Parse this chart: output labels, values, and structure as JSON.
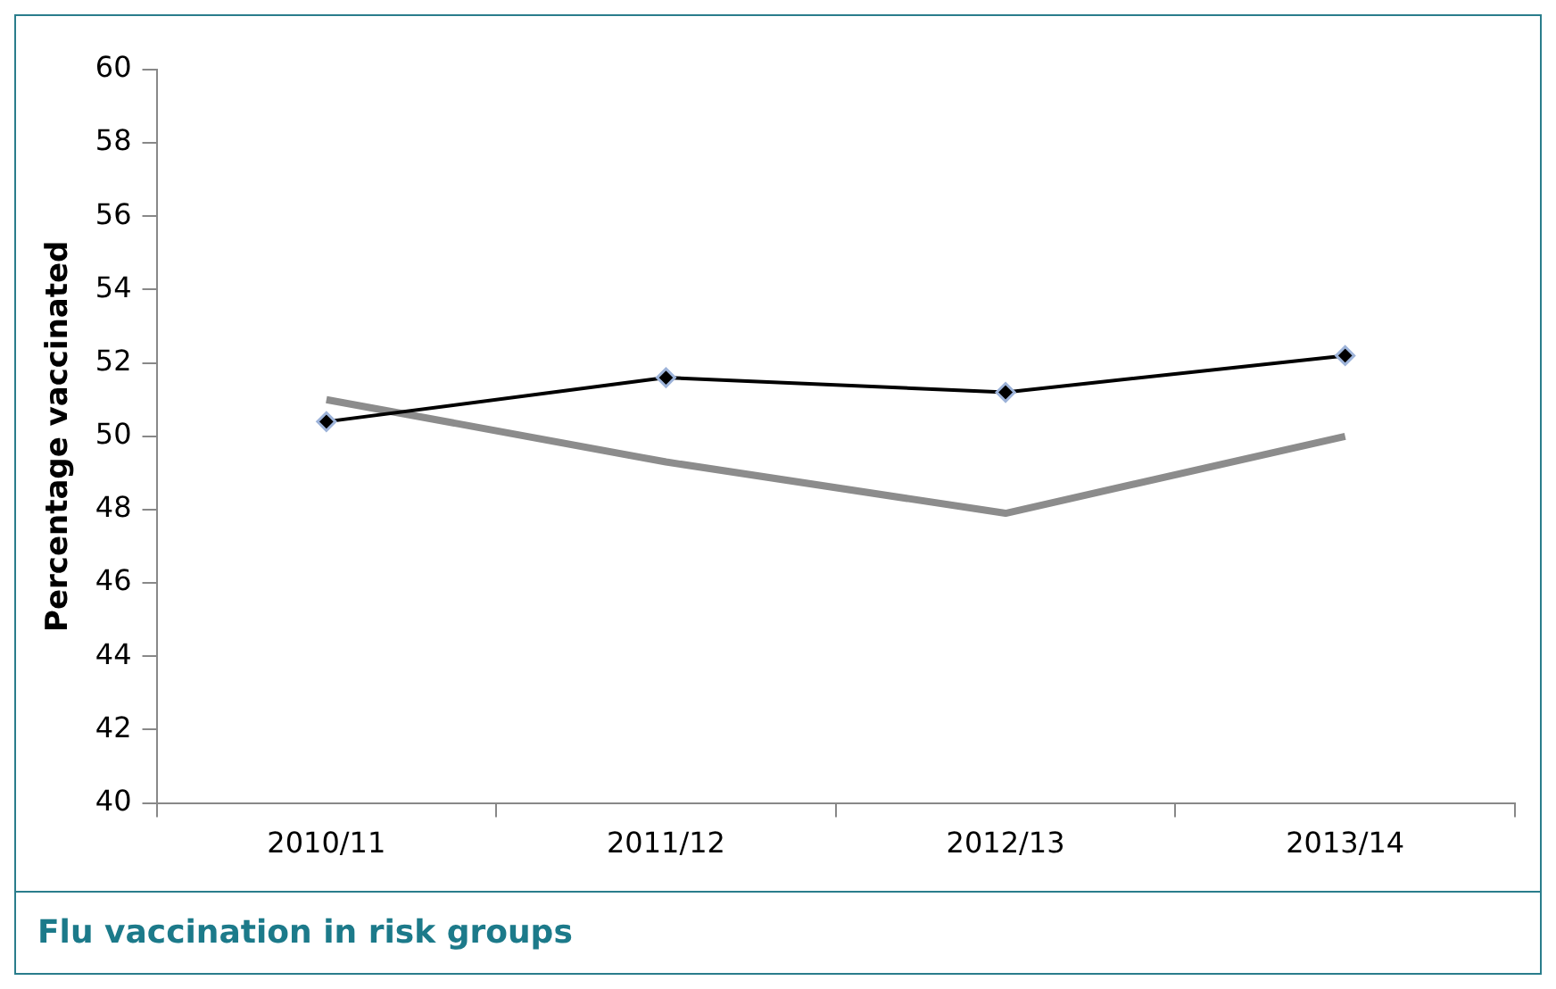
{
  "chart_data": {
    "type": "line",
    "title": "Flu vaccination in risk groups",
    "ylabel": "Percentage vaccinated",
    "categories": [
      "2010/11",
      "2011/12",
      "2012/13",
      "2013/14"
    ],
    "series": [
      {
        "color": "#000000",
        "values": [
          50.4,
          51.6,
          51.2,
          52.2
        ],
        "marker": "diamond"
      },
      {
        "color": "#8c8c8c",
        "values": [
          51.0,
          49.3,
          47.9,
          50.0
        ],
        "marker": "none"
      }
    ],
    "ylim": [
      40,
      60
    ],
    "yticks": [
      40,
      42,
      44,
      46,
      48,
      50,
      52,
      54,
      56,
      58,
      60
    ],
    "grid": false,
    "legend": false
  }
}
